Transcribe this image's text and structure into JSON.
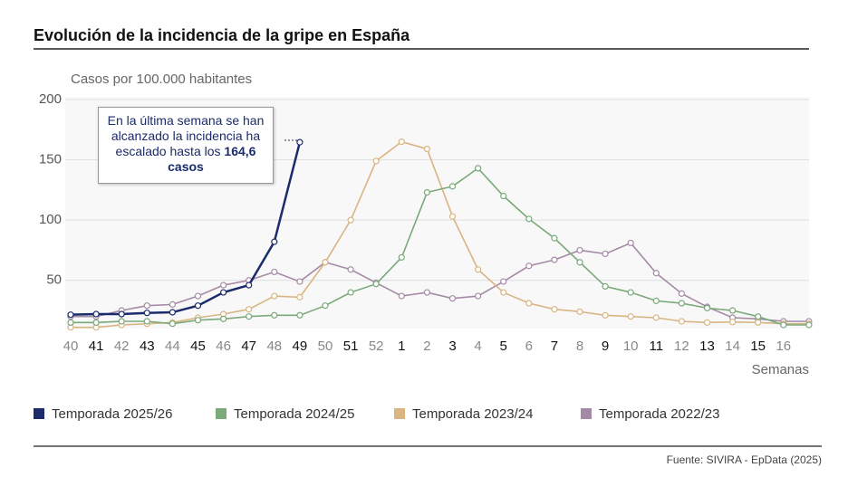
{
  "chart_data": {
    "type": "line",
    "title": "Evolución de la incidencia de la gripe en España",
    "y_label": "Casos por 100.000 habitantes",
    "x_label": "Semanas",
    "source": "Fuente: SIVIRA - EpData (2025)",
    "annotation": {
      "text": "En la última semana se han alcanzado la incidencia ha escalado hasta los",
      "highlight": "164,6 casos"
    },
    "categories": [
      "40",
      "41",
      "42",
      "43",
      "44",
      "45",
      "46",
      "47",
      "48",
      "49",
      "50",
      "51",
      "52",
      "1",
      "2",
      "3",
      "4",
      "5",
      "6",
      "7",
      "8",
      "9",
      "10",
      "11",
      "12",
      "13",
      "14",
      "15",
      "16",
      null
    ],
    "ylim": [
      10,
      200
    ],
    "yticks": [
      50,
      100,
      150,
      200
    ],
    "grid": true,
    "series": [
      {
        "name": "Temporada 2025/26",
        "color": "#1b2b6b",
        "values": [
          21.5,
          22,
          22,
          23,
          23.5,
          29,
          40,
          46,
          82,
          164.6,
          null,
          null,
          null,
          null,
          null,
          null,
          null,
          null,
          null,
          null,
          null,
          null,
          null,
          null,
          null,
          null,
          null,
          null,
          null,
          null
        ]
      },
      {
        "name": "Temporada 2024/25",
        "color": "#7aa97a",
        "values": [
          15,
          15,
          16,
          16,
          14,
          17,
          18,
          20,
          21,
          21,
          29,
          40,
          47,
          69,
          123,
          128,
          143,
          120,
          101,
          85,
          65,
          45,
          40,
          33,
          31,
          27,
          25,
          20,
          13,
          13
        ]
      },
      {
        "name": "Temporada 2023/24",
        "color": "#d9b582",
        "values": [
          11,
          11,
          13,
          14,
          15,
          19,
          22,
          26,
          37,
          36,
          65,
          100,
          149,
          165,
          159,
          103,
          59,
          40,
          31,
          26,
          24,
          21,
          20,
          19,
          16,
          15,
          15.5,
          15,
          14,
          14
        ]
      },
      {
        "name": "Temporada 2022/23",
        "color": "#a58aa6",
        "values": [
          20,
          20,
          25,
          29,
          30,
          37,
          46,
          50,
          57,
          49,
          65,
          59,
          48,
          37,
          40,
          35,
          37,
          49,
          62,
          67,
          75,
          72,
          81,
          56,
          39,
          28,
          19,
          18,
          16,
          16
        ]
      }
    ]
  }
}
